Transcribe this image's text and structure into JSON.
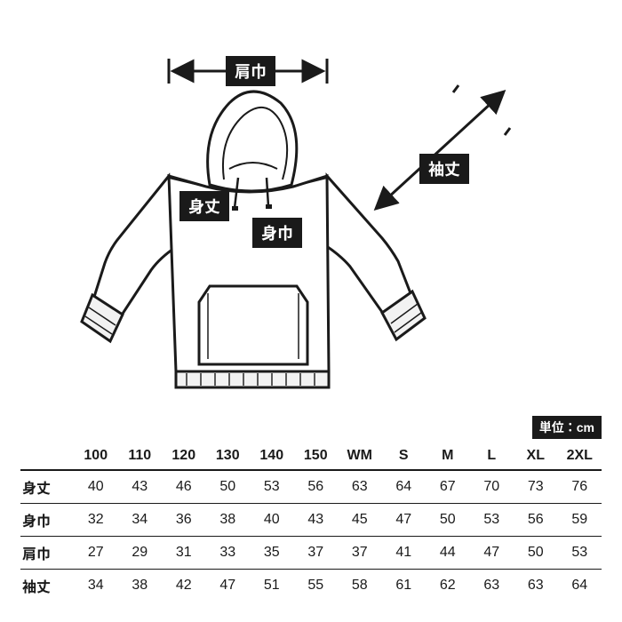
{
  "unit_label": "単位：cm",
  "measure_labels": {
    "shoulder": "肩巾",
    "sleeve": "袖丈",
    "length": "身丈",
    "chest": "身巾"
  },
  "diagram": {
    "stroke": "#1a1a1a",
    "stroke_width": 3,
    "ribbing_fill_light": "#f2f2f2"
  },
  "table": {
    "sizes": [
      "100",
      "110",
      "120",
      "130",
      "140",
      "150",
      "WM",
      "S",
      "M",
      "L",
      "XL",
      "2XL"
    ],
    "rows": [
      {
        "key": "length",
        "label": "身丈",
        "values": [
          40,
          43,
          46,
          50,
          53,
          56,
          63,
          64,
          67,
          70,
          73,
          76
        ]
      },
      {
        "key": "chest",
        "label": "身巾",
        "values": [
          32,
          34,
          36,
          38,
          40,
          43,
          45,
          47,
          50,
          53,
          56,
          59
        ]
      },
      {
        "key": "shoulder",
        "label": "肩巾",
        "values": [
          27,
          29,
          31,
          33,
          35,
          37,
          37,
          41,
          44,
          47,
          50,
          53
        ]
      },
      {
        "key": "sleeve",
        "label": "袖丈",
        "values": [
          34,
          38,
          42,
          47,
          51,
          55,
          58,
          61,
          62,
          63,
          63,
          64
        ]
      }
    ]
  }
}
